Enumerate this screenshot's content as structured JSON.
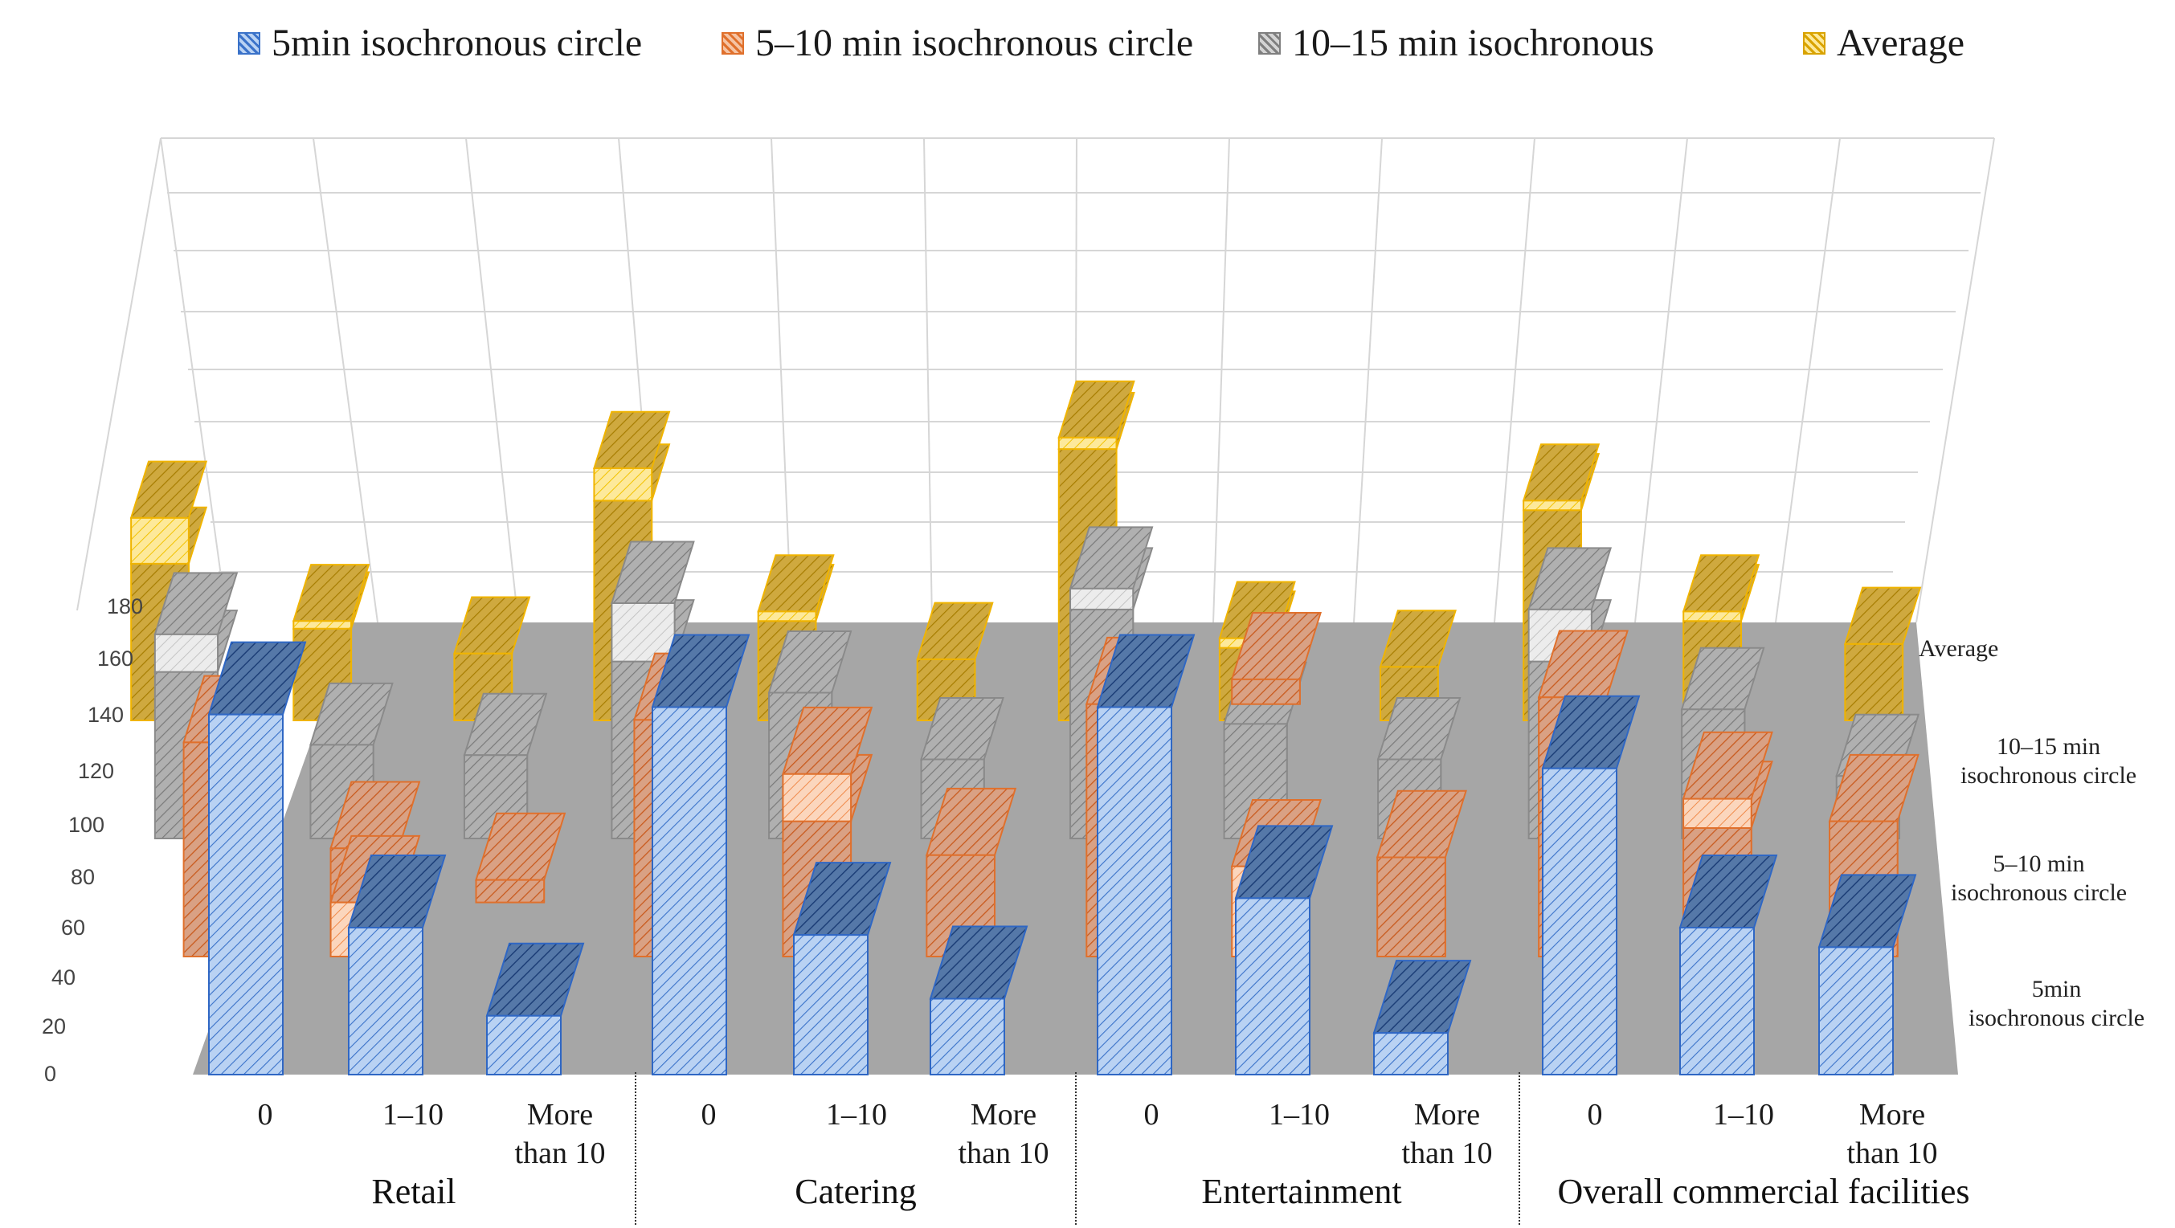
{
  "chart_data": {
    "type": "bar",
    "style": "3d-column",
    "legend": [
      {
        "name": "5min isochronous circle",
        "color": "#3a72c9",
        "fill": "#a9c6ee"
      },
      {
        "name": "5–10 min isochronous circle",
        "color": "#e0702c",
        "fill": "#f0a57a"
      },
      {
        "name": "10–15 min isochronous",
        "color": "#7f7f7f",
        "fill": "#b8b8b8"
      },
      {
        "name": "Average",
        "color": "#d9a300",
        "fill": "#f3c640"
      }
    ],
    "depth_series_labels": [
      "Average",
      "10–15 min isochronous circle",
      "5–10 min isochronous circle",
      "5min isochronous circle"
    ],
    "y_ticks": [
      "0",
      "20",
      "40",
      "60",
      "80",
      "100",
      "120",
      "140",
      "160",
      "180"
    ],
    "ylim": [
      0,
      180
    ],
    "groups": [
      {
        "name": "Retail",
        "categories": [
          "0",
          "1–10",
          "More than 10"
        ],
        "series": [
          {
            "name": "5min isochronous circle",
            "values": [
              [
                0,
                147
              ],
              [
                0,
                60
              ],
              [
                0,
                24
              ]
            ]
          },
          {
            "name": "5–10 min isochronous circle",
            "values": [
              [
                0,
                95
              ],
              [
                0,
                48
              ],
              [
                0,
                24
              ],
              [
                24,
                34
              ]
            ]
          },
          {
            "name": "10–15 min isochronous",
            "values": [
              [
                0,
                80
              ],
              [
                80,
                98
              ],
              [
                0,
                45
              ],
              [
                0,
                40
              ]
            ]
          },
          {
            "name": "Average",
            "values": [
              [
                0,
                82
              ],
              [
                82,
                106
              ],
              [
                0,
                48
              ],
              [
                48,
                52
              ],
              [
                0,
                35
              ]
            ]
          }
        ]
      },
      {
        "name": "Catering",
        "categories": [
          "0",
          "1–10",
          "More than 10"
        ],
        "series": [
          {
            "name": "5min isochronous circle",
            "values": [
              [
                0,
                150
              ],
              [
                0,
                57
              ],
              [
                0,
                31
              ]
            ]
          },
          {
            "name": "5–10 min isochronous circle",
            "values": [
              [
                0,
                105
              ],
              [
                0,
                60
              ],
              [
                60,
                81
              ],
              [
                0,
                45
              ]
            ]
          },
          {
            "name": "10–15 min isochronous",
            "values": [
              [
                0,
                85
              ],
              [
                85,
                113
              ],
              [
                0,
                70
              ],
              [
                0,
                38
              ]
            ]
          },
          {
            "name": "Average",
            "values": [
              [
                0,
                115
              ],
              [
                115,
                132
              ],
              [
                0,
                52
              ],
              [
                52,
                57
              ],
              [
                0,
                32
              ]
            ]
          }
        ]
      },
      {
        "name": "Entertainment",
        "categories": [
          "0",
          "1–10",
          "More than 10"
        ],
        "series": [
          {
            "name": "5min isochronous circle",
            "values": [
              [
                0,
                150
              ],
              [
                0,
                72
              ],
              [
                0,
                17
              ]
            ]
          },
          {
            "name": "5–10 min isochronous circle",
            "values": [
              [
                0,
                112
              ],
              [
                112,
                123
              ],
              [
                0,
                40
              ],
              [
                0,
                44
              ]
            ]
          },
          {
            "name": "10–15 min isochronous",
            "values": [
              [
                0,
                110
              ],
              [
                110,
                120
              ],
              [
                0,
                55
              ],
              [
                0,
                38
              ]
            ]
          },
          {
            "name": "Average",
            "values": [
              [
                0,
                142
              ],
              [
                142,
                148
              ],
              [
                0,
                38
              ],
              [
                38,
                43
              ],
              [
                0,
                28
              ]
            ]
          }
        ]
      },
      {
        "name": "Overall commercial facilities",
        "categories": [
          "0",
          "1–10",
          "More than 10"
        ],
        "series": [
          {
            "name": "5min isochronous circle",
            "values": [
              [
                0,
                125
              ],
              [
                0,
                60
              ],
              [
                0,
                52
              ]
            ]
          },
          {
            "name": "5–10 min isochronous circle",
            "values": [
              [
                0,
                115
              ],
              [
                0,
                57
              ],
              [
                57,
                70
              ],
              [
                0,
                60
              ]
            ]
          },
          {
            "name": "10–15 min isochronous",
            "values": [
              [
                0,
                85
              ],
              [
                85,
                110
              ],
              [
                0,
                62
              ],
              [
                0,
                30
              ]
            ]
          },
          {
            "name": "Average",
            "values": [
              [
                0,
                110
              ],
              [
                110,
                115
              ],
              [
                0,
                52
              ],
              [
                52,
                57
              ],
              [
                0,
                40
              ]
            ]
          }
        ]
      }
    ]
  },
  "legend_labels": {
    "s5": "5min isochronous circle",
    "s10": "5–10 min isochronous circle",
    "s15": "10–15 min isochronous",
    "avg": "Average"
  },
  "axis": {
    "ticks": [
      "0",
      "20",
      "40",
      "60",
      "80",
      "100",
      "120",
      "140",
      "160",
      "180"
    ]
  },
  "categories": {
    "c0": "0",
    "c1": "1–10",
    "c2_line1": "More",
    "c2_line2": "than 10"
  },
  "group_names": {
    "retail": "Retail",
    "catering": "Catering",
    "entertainment": "Entertainment",
    "overall": "Overall commercial facilities"
  },
  "series_axis": {
    "avg": "Average",
    "s15_l1": "10–15 min",
    "s15_l2": "isochronous circle",
    "s10_l1": "5–10 min",
    "s10_l2": "isochronous circle",
    "s5_l1": "5min",
    "s5_l2": "isochronous circle"
  }
}
